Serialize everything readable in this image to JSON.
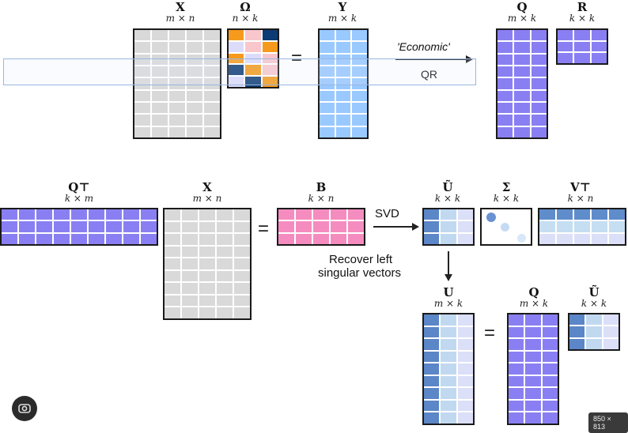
{
  "labels": {
    "X1": {
      "name": "X",
      "dim": "m × n"
    },
    "Omega": {
      "name": "Ω",
      "dim": "n × k"
    },
    "Y": {
      "name": "Y",
      "dim": "m × k"
    },
    "Q1": {
      "name": "Q",
      "dim": "m × k"
    },
    "R": {
      "name": "R",
      "dim": "k × k"
    },
    "QT": {
      "name": "Q⊤",
      "dim": "k × m"
    },
    "X2": {
      "name": "X",
      "dim": "m × n"
    },
    "B": {
      "name": "B",
      "dim": "k × n"
    },
    "Ut1": {
      "name": "Ũ",
      "dim": "k × k"
    },
    "Sigma": {
      "name": "Σ",
      "dim": "k × k"
    },
    "VT": {
      "name": "V⊤",
      "dim": "k × n"
    },
    "U": {
      "name": "U",
      "dim": "m × k"
    },
    "Q2": {
      "name": "Q",
      "dim": "m × k"
    },
    "Ut2": {
      "name": "Ũ",
      "dim": "k × k"
    }
  },
  "equals": "=",
  "economic": "'Economic'",
  "qr": "QR",
  "svd": "SVD",
  "recover_line1": "Recover left",
  "recover_line2": "singular vectors",
  "image_size_badge": "850 × 813",
  "colors": {
    "gray": "#d9d9d9",
    "blue": "#99c9ff",
    "purple": "#8a7ff2",
    "pink": "#f58cc0",
    "orange": "#f59a1c",
    "navy": "#0d3b73",
    "lightpink": "#f9c6cc",
    "lavender": "#dcdcfa",
    "ublue_dark": "#5b86c7",
    "ublue_mid": "#c1d9f0",
    "ublue_light": "#dcdff8",
    "vt_row1": "#5f8ccb",
    "vt_row2": "#c5def2",
    "vt_row3": "#dcdff8",
    "sigma_dot": "#6a92d2"
  },
  "omega_pattern": [
    [
      "orange",
      "lightpink",
      "navy"
    ],
    [
      "lavender",
      "lightpink",
      "orange"
    ],
    [
      "orange",
      "lavender",
      "lightpink"
    ],
    [
      "navy",
      "orange",
      "lightpink"
    ],
    [
      "lavender",
      "navy",
      "orange"
    ]
  ]
}
